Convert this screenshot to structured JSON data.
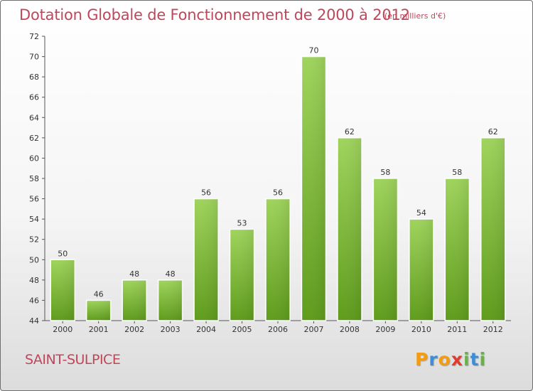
{
  "title": "Dotation Globale de Fonctionnement de 2000 à 2012",
  "subtitle": "(en milliers d'€)",
  "city": "SAINT-SULPICE",
  "logo": {
    "text": "Proxiti",
    "letters": [
      {
        "char": "P",
        "color": "#f39c12"
      },
      {
        "char": "r",
        "color": "#3b8fd8"
      },
      {
        "char": "o",
        "color": "#f39c12"
      },
      {
        "char": "x",
        "color": "#e23b2e"
      },
      {
        "char": "i",
        "color": "#6ab04c"
      },
      {
        "char": "t",
        "color": "#3b8fd8"
      },
      {
        "char": "i",
        "color": "#6ab04c"
      }
    ]
  },
  "colors": {
    "text_accent": "#c0465a",
    "bar_light": "#9cd35b",
    "bar_dark": "#5c9a1a",
    "axis": "#444444",
    "grid": "#cfcfcf"
  },
  "chart_data": {
    "type": "bar",
    "title": "Dotation Globale de Fonctionnement de 2000 à 2012",
    "subtitle": "(en milliers d'€)",
    "categories": [
      "2000",
      "2001",
      "2002",
      "2003",
      "2004",
      "2005",
      "2006",
      "2007",
      "2008",
      "2009",
      "2010",
      "2011",
      "2012"
    ],
    "values": [
      50,
      46,
      48,
      48,
      56,
      53,
      56,
      70,
      62,
      58,
      54,
      58,
      62
    ],
    "ylim": [
      44,
      72
    ],
    "yticks": [
      44,
      46,
      48,
      50,
      52,
      54,
      56,
      58,
      60,
      62,
      64,
      66,
      68,
      70,
      72
    ],
    "grid": false,
    "legend": "none"
  }
}
